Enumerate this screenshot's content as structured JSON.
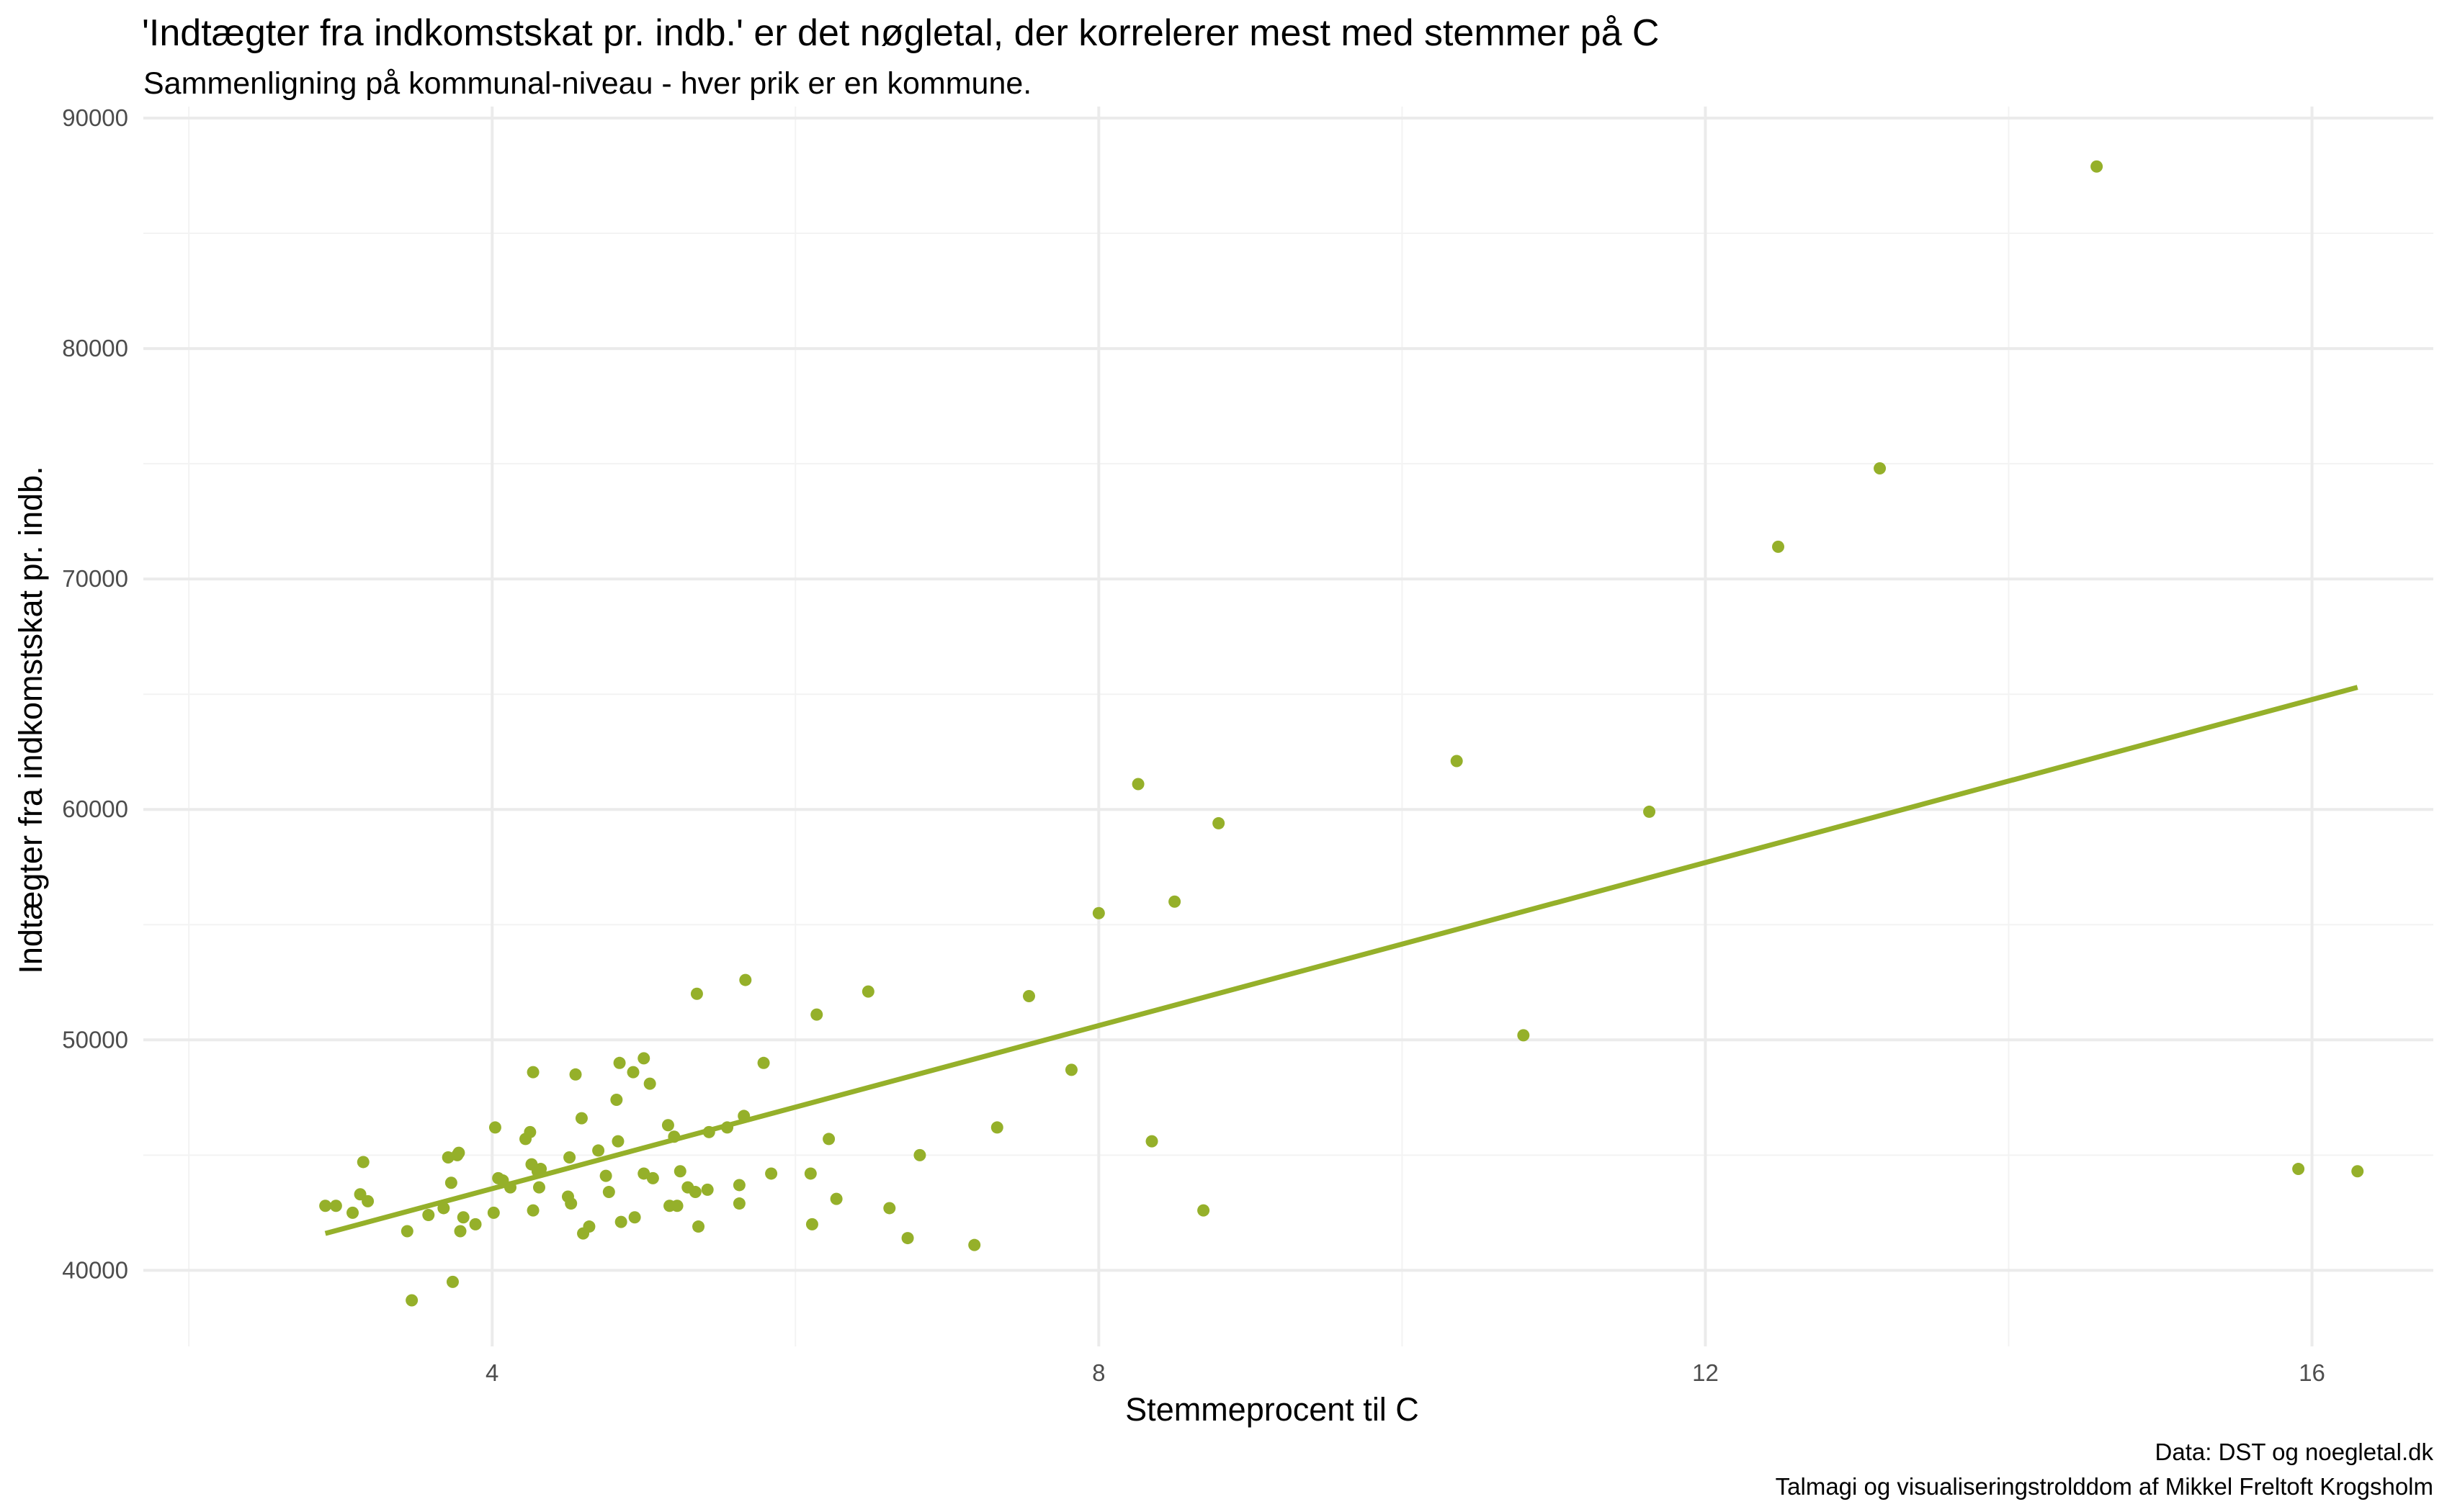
{
  "chart_data": {
    "type": "scatter",
    "title": "'Indtægter fra indkomstskat pr. indb.' er det nøgletal, der korrelerer mest med stemmer på C",
    "subtitle": "Sammenligning på kommunal-niveau - hver prik er en kommune.",
    "xlabel": "Stemmeprocent til C",
    "ylabel": "Indtægter fra indkomstskat pr. indb.",
    "caption": [
      "Data: DST og noegletal.dk",
      "Talmagi og visualiseringstrolddom af Mikkel Freltoft Krogsholm"
    ],
    "xlim": [
      1.7,
      16.8
    ],
    "ylim": [
      36700,
      90500
    ],
    "x_ticks": [
      4,
      8,
      12,
      16
    ],
    "x_tick_labels": [
      "4",
      "8",
      "12",
      "16"
    ],
    "y_ticks": [
      40000,
      50000,
      60000,
      70000,
      80000,
      90000
    ],
    "y_tick_labels": [
      "40000",
      "50000",
      "60000",
      "70000",
      "80000",
      "90000"
    ],
    "grid": true,
    "point_color": "#95b02a",
    "line_color": "#95b02a",
    "trend_line": {
      "x": [
        2.9,
        16.3
      ],
      "y": [
        41600,
        65300
      ]
    },
    "points": [
      [
        2.9,
        42800
      ],
      [
        2.97,
        42800
      ],
      [
        3.08,
        42500
      ],
      [
        3.13,
        43300
      ],
      [
        3.15,
        44700
      ],
      [
        3.18,
        43000
      ],
      [
        3.44,
        41700
      ],
      [
        3.47,
        38700
      ],
      [
        3.58,
        42400
      ],
      [
        3.68,
        42700
      ],
      [
        3.71,
        44900
      ],
      [
        3.73,
        43800
      ],
      [
        3.74,
        39500
      ],
      [
        3.77,
        45000
      ],
      [
        3.78,
        45100
      ],
      [
        3.79,
        41700
      ],
      [
        3.81,
        42300
      ],
      [
        3.89,
        42000
      ],
      [
        4.01,
        42500
      ],
      [
        4.02,
        46200
      ],
      [
        4.04,
        44000
      ],
      [
        4.07,
        43900
      ],
      [
        4.12,
        43600
      ],
      [
        4.22,
        45700
      ],
      [
        4.25,
        46000
      ],
      [
        4.26,
        44600
      ],
      [
        4.27,
        42600
      ],
      [
        4.27,
        48600
      ],
      [
        4.3,
        44300
      ],
      [
        4.31,
        43600
      ],
      [
        4.32,
        44400
      ],
      [
        4.5,
        43200
      ],
      [
        4.51,
        44900
      ],
      [
        4.52,
        42900
      ],
      [
        4.55,
        48500
      ],
      [
        4.59,
        46600
      ],
      [
        4.6,
        41600
      ],
      [
        4.64,
        41900
      ],
      [
        4.7,
        45200
      ],
      [
        4.75,
        44100
      ],
      [
        4.77,
        43400
      ],
      [
        4.82,
        47400
      ],
      [
        4.83,
        45600
      ],
      [
        4.84,
        49000
      ],
      [
        4.85,
        42100
      ],
      [
        4.93,
        48600
      ],
      [
        4.94,
        42300
      ],
      [
        5.0,
        49200
      ],
      [
        5.0,
        44200
      ],
      [
        5.04,
        48100
      ],
      [
        5.06,
        44000
      ],
      [
        5.16,
        46300
      ],
      [
        5.17,
        42800
      ],
      [
        5.2,
        45800
      ],
      [
        5.22,
        42800
      ],
      [
        5.24,
        44300
      ],
      [
        5.29,
        43600
      ],
      [
        5.34,
        43400
      ],
      [
        5.35,
        52000
      ],
      [
        5.36,
        41900
      ],
      [
        5.42,
        43500
      ],
      [
        5.43,
        46000
      ],
      [
        5.55,
        46200
      ],
      [
        5.63,
        43700
      ],
      [
        5.63,
        42900
      ],
      [
        5.66,
        46700
      ],
      [
        5.67,
        52600
      ],
      [
        5.79,
        49000
      ],
      [
        5.84,
        44200
      ],
      [
        6.1,
        44200
      ],
      [
        6.11,
        42000
      ],
      [
        6.14,
        51100
      ],
      [
        6.22,
        45700
      ],
      [
        6.27,
        43100
      ],
      [
        6.48,
        52100
      ],
      [
        6.62,
        42700
      ],
      [
        6.74,
        41400
      ],
      [
        6.82,
        45000
      ],
      [
        7.18,
        41100
      ],
      [
        7.33,
        46200
      ],
      [
        7.54,
        51900
      ],
      [
        7.82,
        48700
      ],
      [
        8.0,
        55500
      ],
      [
        8.26,
        61100
      ],
      [
        8.35,
        45600
      ],
      [
        8.5,
        56000
      ],
      [
        8.69,
        42600
      ],
      [
        8.79,
        59400
      ],
      [
        10.36,
        62100
      ],
      [
        10.8,
        50200
      ],
      [
        11.63,
        59900
      ],
      [
        12.48,
        71400
      ],
      [
        13.15,
        74800
      ],
      [
        14.58,
        87900
      ],
      [
        15.91,
        44400
      ],
      [
        16.3,
        44300
      ]
    ]
  }
}
